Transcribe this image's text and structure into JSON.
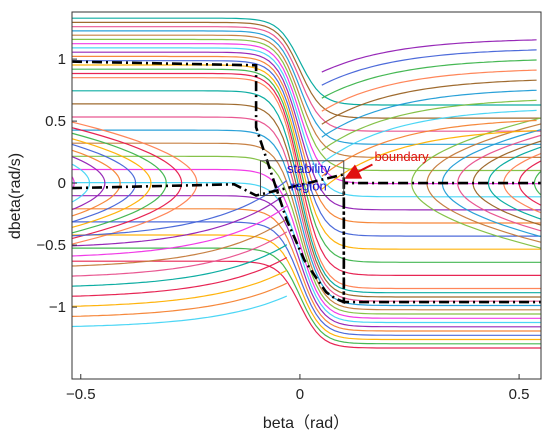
{
  "chart_data": {
    "type": "line",
    "title": "",
    "xlabel": "beta（rad）",
    "ylabel": "dbeta(rad/s)",
    "xlim": [
      -0.52,
      0.55
    ],
    "ylim": [
      -1.58,
      1.38
    ],
    "xticks": [
      -0.5,
      0,
      0.5
    ],
    "xtick_labels": [
      "−0.5",
      "0",
      "0.5"
    ],
    "yticks": [
      -1,
      -0.5,
      0,
      0.5,
      1
    ],
    "ytick_labels": [
      "−1",
      "−0.5",
      "0",
      "0.5",
      "1"
    ],
    "grid": false,
    "legend": "none",
    "series": [
      {
        "style": "dash-dot",
        "color": "#000000",
        "x": [
          -0.52,
          -0.1,
          -0.1,
          -0.03,
          0.01,
          0.04,
          0.06,
          0.08,
          0.1,
          0.1,
          0.55
        ],
        "y": [
          0.98,
          0.95,
          0.45,
          -0.3,
          -0.62,
          -0.78,
          -0.88,
          -0.93,
          -0.96,
          0.0,
          0.0
        ]
      },
      {
        "style": "dash-dot",
        "color": "#000000",
        "x": [
          -0.52,
          -0.15,
          -0.1,
          0.1,
          0.1,
          0.55
        ],
        "y": [
          -0.04,
          -0.01,
          -0.1,
          0.07,
          -0.96,
          -0.96
        ]
      }
    ],
    "stream_colors": [
      "#e6194b",
      "#3cb44b",
      "#ffb000",
      "#4363d8",
      "#f58231",
      "#911eb4",
      "#42d4f4",
      "#f032e6",
      "#7fbf3f",
      "#c47a3a",
      "#1f9cd6",
      "#e84f8c",
      "#9a6324",
      "#00a99d",
      "#ff7f50"
    ],
    "annotations": [
      {
        "text": "stability",
        "color": "#1010d0",
        "x": 0.02,
        "y": 0.08
      },
      {
        "text": "region",
        "color": "#1010d0",
        "x": 0.02,
        "y": -0.06
      },
      {
        "text": "boundary",
        "color": "#e01010",
        "x": 0.17,
        "y": 0.18
      }
    ],
    "stability_box": {
      "x0": -0.09,
      "x1": 0.1,
      "y0": -0.1,
      "y1": 0.18
    }
  }
}
